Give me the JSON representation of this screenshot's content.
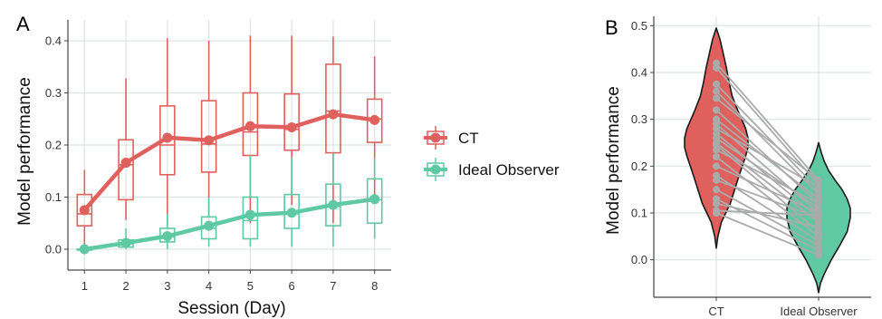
{
  "panels": {
    "a": {
      "letter": "A"
    },
    "b": {
      "letter": "B"
    }
  },
  "colors": {
    "ct": "#e0605e",
    "ideal": "#5ec9a2",
    "grid": "#dde3e3",
    "connector": "#a9abab",
    "violin_outline": "#1a1a1a"
  },
  "chart_data": [
    {
      "id": "panel-a",
      "type": "line",
      "overlay": "boxplot",
      "x": [
        1,
        2,
        3,
        4,
        5,
        6,
        7,
        8
      ],
      "x_tick_labels": [
        "1",
        "2",
        "3",
        "4",
        "5",
        "6",
        "7",
        "8"
      ],
      "y_ticks": [
        0.0,
        0.1,
        0.2,
        0.3,
        0.4
      ],
      "y_tick_labels": [
        "0.0",
        "0.1",
        "0.2",
        "0.3",
        "0.4"
      ],
      "xlabel": "Session (Day)",
      "ylabel": "Model performance",
      "xlim": [
        0.6,
        8.4
      ],
      "ylim": [
        -0.04,
        0.44
      ],
      "grid": true,
      "legend_position": "right",
      "series": [
        {
          "name": "CT",
          "color": "#e0605e",
          "means": [
            0.075,
            0.166,
            0.214,
            0.209,
            0.236,
            0.234,
            0.259,
            0.248
          ],
          "boxes": [
            {
              "whisker_low": -0.005,
              "q1": 0.045,
              "median": 0.068,
              "q3": 0.105,
              "whisker_high": 0.152
            },
            {
              "whisker_low": 0.056,
              "q1": 0.095,
              "median": 0.162,
              "q3": 0.21,
              "whisker_high": 0.328
            },
            {
              "whisker_low": 0.045,
              "q1": 0.143,
              "median": 0.2,
              "q3": 0.275,
              "whisker_high": 0.405
            },
            {
              "whisker_low": 0.062,
              "q1": 0.148,
              "median": 0.202,
              "q3": 0.285,
              "whisker_high": 0.4
            },
            {
              "whisker_low": 0.05,
              "q1": 0.18,
              "median": 0.225,
              "q3": 0.3,
              "whisker_high": 0.41
            },
            {
              "whisker_low": 0.085,
              "q1": 0.19,
              "median": 0.23,
              "q3": 0.298,
              "whisker_high": 0.41
            },
            {
              "whisker_low": 0.05,
              "q1": 0.185,
              "median": 0.265,
              "q3": 0.355,
              "whisker_high": 0.408
            },
            {
              "whisker_low": 0.09,
              "q1": 0.205,
              "median": 0.25,
              "q3": 0.288,
              "whisker_high": 0.37
            }
          ]
        },
        {
          "name": "Ideal Observer",
          "color": "#5ec9a2",
          "means": [
            0.0,
            0.012,
            0.025,
            0.045,
            0.066,
            0.07,
            0.085,
            0.096
          ],
          "boxes": [
            {
              "whisker_low": 0.0,
              "q1": 0.0,
              "median": 0.0,
              "q3": 0.0,
              "whisker_high": 0.0
            },
            {
              "whisker_low": 0.0,
              "q1": 0.004,
              "median": 0.01,
              "q3": 0.018,
              "whisker_high": 0.04
            },
            {
              "whisker_low": 0.0,
              "q1": 0.014,
              "median": 0.024,
              "q3": 0.04,
              "whisker_high": 0.068
            },
            {
              "whisker_low": 0.005,
              "q1": 0.02,
              "median": 0.04,
              "q3": 0.062,
              "whisker_high": 0.1
            },
            {
              "whisker_low": 0.005,
              "q1": 0.02,
              "median": 0.055,
              "q3": 0.1,
              "whisker_high": 0.18
            },
            {
              "whisker_low": 0.005,
              "q1": 0.04,
              "median": 0.068,
              "q3": 0.105,
              "whisker_high": 0.175
            },
            {
              "whisker_low": 0.005,
              "q1": 0.045,
              "median": 0.082,
              "q3": 0.125,
              "whisker_high": 0.185
            },
            {
              "whisker_low": 0.02,
              "q1": 0.05,
              "median": 0.095,
              "q3": 0.135,
              "whisker_high": 0.175
            }
          ]
        }
      ],
      "legend": [
        {
          "name": "CT",
          "color": "#e0605e"
        },
        {
          "name": "Ideal Observer",
          "color": "#5ec9a2"
        }
      ]
    },
    {
      "id": "panel-b",
      "type": "scatter",
      "overlay": "violin",
      "categories": [
        "CT",
        "Ideal Observer"
      ],
      "y_ticks": [
        0.0,
        0.1,
        0.2,
        0.3,
        0.4,
        0.5
      ],
      "y_tick_labels": [
        "0.0",
        "0.1",
        "0.2",
        "0.3",
        "0.4",
        "0.5"
      ],
      "xlabel": "",
      "ylabel": "Model performance",
      "ylim": [
        -0.08,
        0.52
      ],
      "grid": true,
      "violins": [
        {
          "category": "CT",
          "color": "#e0605e",
          "y_min": 0.025,
          "y_max": 0.495,
          "density": [
            [
              0.025,
              0.0
            ],
            [
              0.05,
              0.05
            ],
            [
              0.08,
              0.16
            ],
            [
              0.1,
              0.3
            ],
            [
              0.12,
              0.44
            ],
            [
              0.15,
              0.58
            ],
            [
              0.18,
              0.72
            ],
            [
              0.2,
              0.82
            ],
            [
              0.22,
              0.92
            ],
            [
              0.24,
              1.0
            ],
            [
              0.26,
              1.0
            ],
            [
              0.28,
              0.93
            ],
            [
              0.3,
              0.8
            ],
            [
              0.32,
              0.67
            ],
            [
              0.35,
              0.5
            ],
            [
              0.38,
              0.4
            ],
            [
              0.41,
              0.32
            ],
            [
              0.44,
              0.22
            ],
            [
              0.47,
              0.12
            ],
            [
              0.495,
              0.0
            ]
          ]
        },
        {
          "category": "Ideal Observer",
          "color": "#5ec9a2",
          "y_min": -0.07,
          "y_max": 0.25,
          "density": [
            [
              -0.07,
              0.0
            ],
            [
              -0.05,
              0.06
            ],
            [
              -0.03,
              0.18
            ],
            [
              0.0,
              0.4
            ],
            [
              0.03,
              0.66
            ],
            [
              0.06,
              0.9
            ],
            [
              0.09,
              1.0
            ],
            [
              0.11,
              1.0
            ],
            [
              0.13,
              0.9
            ],
            [
              0.15,
              0.74
            ],
            [
              0.17,
              0.52
            ],
            [
              0.19,
              0.32
            ],
            [
              0.21,
              0.18
            ],
            [
              0.23,
              0.08
            ],
            [
              0.25,
              0.0
            ]
          ]
        }
      ],
      "paired_points": [
        {
          "ct": 0.42,
          "ideal": 0.17
        },
        {
          "ct": 0.41,
          "ideal": 0.16
        },
        {
          "ct": 0.375,
          "ideal": 0.15
        },
        {
          "ct": 0.36,
          "ideal": 0.14
        },
        {
          "ct": 0.345,
          "ideal": 0.17
        },
        {
          "ct": 0.32,
          "ideal": 0.12
        },
        {
          "ct": 0.3,
          "ideal": 0.13
        },
        {
          "ct": 0.29,
          "ideal": 0.1
        },
        {
          "ct": 0.28,
          "ideal": 0.155
        },
        {
          "ct": 0.27,
          "ideal": 0.09
        },
        {
          "ct": 0.26,
          "ideal": 0.11
        },
        {
          "ct": 0.25,
          "ideal": 0.08
        },
        {
          "ct": 0.245,
          "ideal": 0.06
        },
        {
          "ct": 0.235,
          "ideal": 0.12
        },
        {
          "ct": 0.22,
          "ideal": 0.05
        },
        {
          "ct": 0.2,
          "ideal": 0.1
        },
        {
          "ct": 0.18,
          "ideal": 0.04
        },
        {
          "ct": 0.17,
          "ideal": 0.09
        },
        {
          "ct": 0.15,
          "ideal": 0.03
        },
        {
          "ct": 0.13,
          "ideal": 0.02
        },
        {
          "ct": 0.12,
          "ideal": 0.07
        },
        {
          "ct": 0.105,
          "ideal": 0.095
        },
        {
          "ct": 0.1,
          "ideal": 0.01
        }
      ]
    }
  ]
}
